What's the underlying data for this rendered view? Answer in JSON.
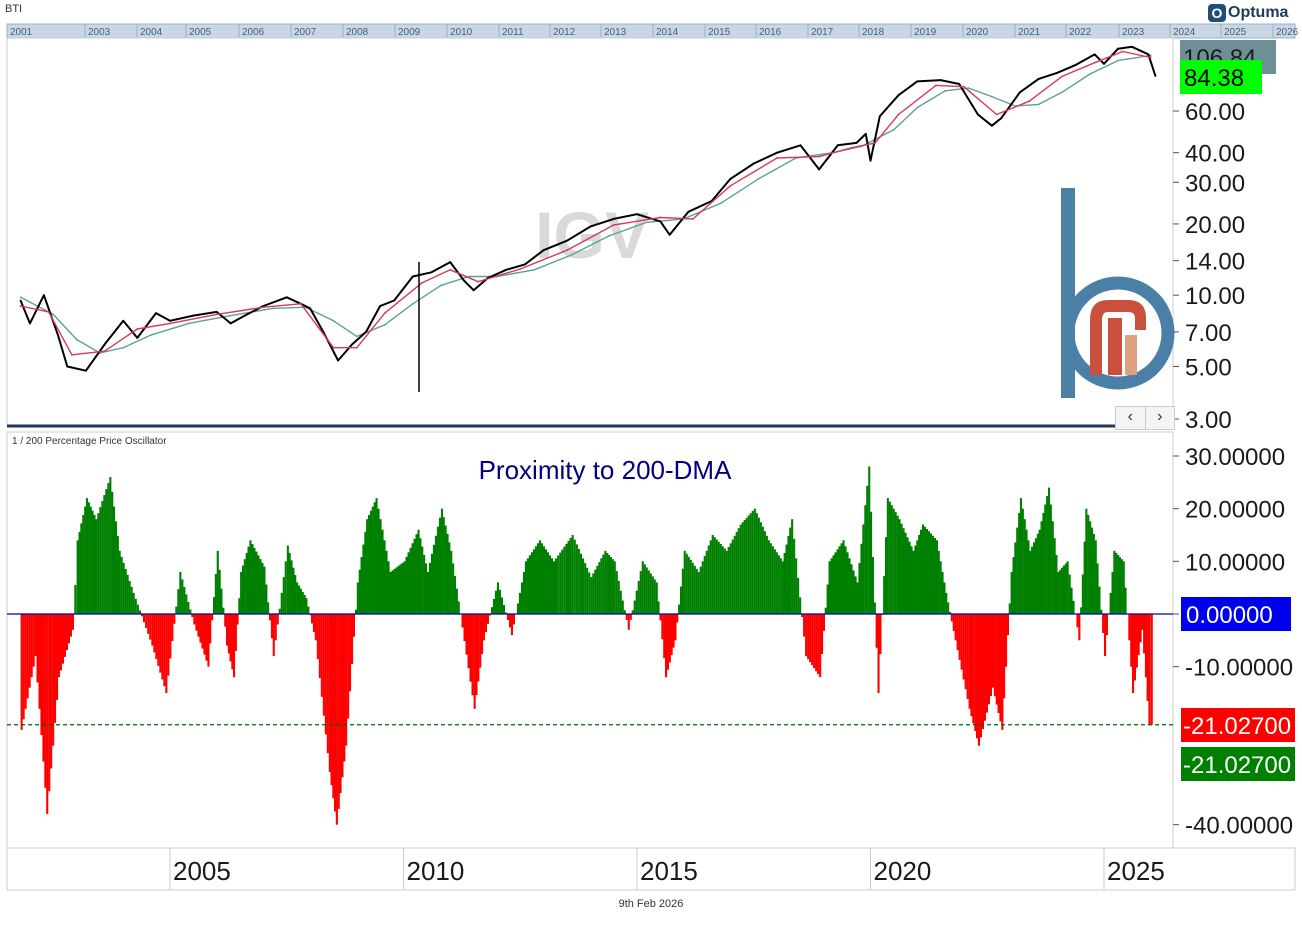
{
  "window": {
    "corner_label": "BTI",
    "footer_date": "9th Feb 2026",
    "brand": "Optuma"
  },
  "colors": {
    "price": "#000000",
    "ma_short": "#d63a5a",
    "ma_long": "#5aa0a0",
    "positive": "#008000",
    "negative": "#ff0000",
    "zero_line": "#0000aa",
    "badge_green": "#00ff00",
    "badge_blue": "#0000ee",
    "badge_red": "#ff0000",
    "badge_darkgreen": "#008000",
    "badge_gray": "#6e8f96",
    "dashed": "#006400",
    "logo_blue": "#4a7fa6",
    "logo_red": "#c8503c",
    "logo_salmon": "#e0a080"
  },
  "overview_years": [
    "2001",
    "2003",
    "2004",
    "2005",
    "2006",
    "2007",
    "2008",
    "2009",
    "2010",
    "2011",
    "2012",
    "2013",
    "2014",
    "2015",
    "2016",
    "2017",
    "2018",
    "2019",
    "2020",
    "2021",
    "2022",
    "2023",
    "2024",
    "2025",
    "2026"
  ],
  "chart_data": [
    {
      "type": "line",
      "title": "IGV",
      "ylabel": "",
      "xlabel": "",
      "y_scale": "log",
      "ylim": [
        3,
        140
      ],
      "y_ticks": [
        "3.00",
        "5.00",
        "7.00",
        "10.00",
        "14.00",
        "20.00",
        "30.00",
        "40.00",
        "60.00"
      ],
      "last_badges": {
        "high": "106.84",
        "last": "84.38"
      },
      "series": [
        {
          "name": "Price",
          "x": [
            2001.8,
            2002.0,
            2002.3,
            2002.6,
            2002.8,
            2003.2,
            2003.6,
            2004.0,
            2004.3,
            2004.7,
            2005.0,
            2005.5,
            2006.0,
            2006.3,
            2006.6,
            2007.0,
            2007.5,
            2007.8,
            2008.0,
            2008.3,
            2008.6,
            2008.9,
            2009.2,
            2009.5,
            2009.8,
            2010.2,
            2010.6,
            2011.0,
            2011.3,
            2011.5,
            2011.8,
            2012.2,
            2012.6,
            2013.0,
            2013.5,
            2014.0,
            2014.5,
            2015.0,
            2015.5,
            2015.7,
            2016.1,
            2016.6,
            2017.0,
            2017.5,
            2018.0,
            2018.5,
            2018.9,
            2019.3,
            2019.7,
            2019.9,
            2020.0,
            2020.2,
            2020.6,
            2021.0,
            2021.5,
            2021.9,
            2022.3,
            2022.6,
            2022.8,
            2023.2,
            2023.6,
            2024.0,
            2024.4,
            2024.8,
            2025.0,
            2025.3,
            2025.6,
            2025.95,
            2026.1
          ],
          "values": [
            9.5,
            7.6,
            10.0,
            6.8,
            5.0,
            4.8,
            6.2,
            7.8,
            6.6,
            8.4,
            7.8,
            8.2,
            8.5,
            7.6,
            8.2,
            9.0,
            9.8,
            9.2,
            8.8,
            6.9,
            5.3,
            6.2,
            7.0,
            9.0,
            9.5,
            12.0,
            12.5,
            13.8,
            11.5,
            10.5,
            11.8,
            12.8,
            13.5,
            15.5,
            17.0,
            19.5,
            21.0,
            22.0,
            20.5,
            18.0,
            22.5,
            25.0,
            31.0,
            36.0,
            40.0,
            43.0,
            34.0,
            43.0,
            44.0,
            48.0,
            37.0,
            57.0,
            70.0,
            80.0,
            81.0,
            78.0,
            58.0,
            52.0,
            56.0,
            72.0,
            82.0,
            87.0,
            94.0,
            104.0,
            95.0,
            110.0,
            112.0,
            104.0,
            84.38
          ]
        },
        {
          "name": "MA short",
          "x": [
            2001.8,
            2002.4,
            2002.9,
            2003.6,
            2004.3,
            2005.0,
            2006.0,
            2007.0,
            2007.8,
            2008.5,
            2009.0,
            2009.6,
            2010.4,
            2011.0,
            2011.6,
            2012.5,
            2013.5,
            2014.5,
            2015.5,
            2016.2,
            2017.0,
            2018.0,
            2018.9,
            2019.6,
            2020.1,
            2020.6,
            2021.4,
            2022.0,
            2022.7,
            2023.4,
            2024.1,
            2024.8,
            2025.4,
            2026.0
          ],
          "values": [
            9.0,
            8.5,
            5.6,
            5.8,
            7.2,
            7.6,
            8.3,
            8.9,
            9.2,
            6.0,
            6.0,
            8.4,
            11.3,
            12.8,
            11.4,
            12.9,
            15.5,
            19.8,
            21.3,
            21.0,
            29.0,
            38.0,
            38.5,
            42.0,
            44.0,
            58.0,
            77.0,
            76.0,
            58.0,
            66.0,
            84.0,
            96.0,
            107.0,
            101.0
          ]
        },
        {
          "name": "MA long",
          "x": [
            2001.8,
            2002.5,
            2003.0,
            2003.5,
            2004.0,
            2004.6,
            2005.4,
            2006.3,
            2007.2,
            2007.9,
            2008.5,
            2009.0,
            2009.6,
            2010.2,
            2010.8,
            2011.4,
            2012.0,
            2012.8,
            2013.6,
            2014.4,
            2015.2,
            2016.0,
            2016.8,
            2017.6,
            2018.4,
            2019.2,
            2019.8,
            2020.5,
            2021.0,
            2021.6,
            2022.1,
            2022.6,
            2023.1,
            2023.6,
            2024.1,
            2024.7,
            2025.3,
            2026.0
          ],
          "values": [
            9.8,
            8.3,
            6.5,
            5.7,
            6.0,
            6.8,
            7.6,
            8.2,
            8.8,
            8.9,
            7.8,
            6.7,
            7.5,
            9.2,
            11.0,
            12.0,
            12.0,
            12.8,
            14.8,
            17.8,
            20.3,
            21.0,
            24.5,
            31.0,
            38.0,
            40.0,
            42.5,
            50.0,
            62.0,
            73.0,
            75.0,
            69.0,
            63.0,
            64.0,
            72.0,
            86.0,
            98.0,
            103.0
          ]
        }
      ]
    },
    {
      "type": "area",
      "title": "1 / 200 Percentage Price Oscillator",
      "annotation": "Proximity to 200-DMA",
      "ylim": [
        -45,
        33
      ],
      "y_ticks": [
        "30.00000",
        "20.00000",
        "10.00000",
        "0.00000",
        "-10.00000",
        "-40.00000"
      ],
      "badges": {
        "zero": "0.00000",
        "last_red": "-21.02700",
        "last_green": "-21.02700"
      },
      "dashed_level": -21.027,
      "x_ticks": [
        "2005",
        "2010",
        "2015",
        "2020",
        "2025"
      ],
      "series": [
        {
          "name": "Oscillator",
          "x": [
            2001.8,
            2002.1,
            2002.35,
            2002.6,
            2002.9,
            2003.0,
            2003.2,
            2003.4,
            2003.7,
            2003.9,
            2004.2,
            2004.6,
            2004.9,
            2005.2,
            2005.5,
            2005.8,
            2006.0,
            2006.2,
            2006.35,
            2006.5,
            2006.7,
            2007.0,
            2007.2,
            2007.5,
            2007.7,
            2007.9,
            2008.1,
            2008.4,
            2008.55,
            2008.75,
            2009.0,
            2009.2,
            2009.4,
            2009.7,
            2010.0,
            2010.3,
            2010.5,
            2010.8,
            2011.0,
            2011.2,
            2011.5,
            2011.7,
            2012.0,
            2012.3,
            2012.6,
            2012.9,
            2013.2,
            2013.6,
            2014.0,
            2014.3,
            2014.5,
            2014.8,
            2015.1,
            2015.4,
            2015.6,
            2015.8,
            2016.0,
            2016.3,
            2016.6,
            2016.9,
            2017.2,
            2017.5,
            2017.8,
            2018.1,
            2018.3,
            2018.6,
            2018.9,
            2019.1,
            2019.4,
            2019.7,
            2019.95,
            2020.15,
            2020.35,
            2020.6,
            2020.9,
            2021.1,
            2021.4,
            2021.6,
            2021.8,
            2022.1,
            2022.3,
            2022.6,
            2022.8,
            2023.0,
            2023.2,
            2023.4,
            2023.6,
            2023.8,
            2024.0,
            2024.2,
            2024.45,
            2024.6,
            2024.8,
            2025.0,
            2025.2,
            2025.4,
            2025.6,
            2025.8,
            2025.95,
            2026.05
          ],
          "values": [
            -22,
            -8,
            -38,
            -12,
            -3,
            14,
            22,
            18,
            26,
            12,
            4,
            -6,
            -15,
            8,
            -2,
            -10,
            12,
            -6,
            -12,
            8,
            14,
            9,
            -8,
            13,
            6,
            3,
            -5,
            -30,
            -40,
            -25,
            6,
            18,
            22,
            8,
            10,
            16,
            8,
            20,
            12,
            0,
            -18,
            -5,
            6,
            -4,
            10,
            14,
            10,
            15,
            7,
            12,
            10,
            -3,
            10,
            6,
            -12,
            -5,
            12,
            8,
            15,
            12,
            17,
            20,
            14,
            10,
            18,
            -8,
            -12,
            10,
            14,
            6,
            28,
            -15,
            22,
            18,
            12,
            17,
            14,
            4,
            -5,
            -18,
            -25,
            -14,
            -22,
            8,
            22,
            12,
            16,
            24,
            8,
            10,
            -5,
            20,
            14,
            -8,
            12,
            10,
            -15,
            -3,
            -21,
            -21.027
          ]
        }
      ]
    }
  ],
  "watermark": "IGV"
}
